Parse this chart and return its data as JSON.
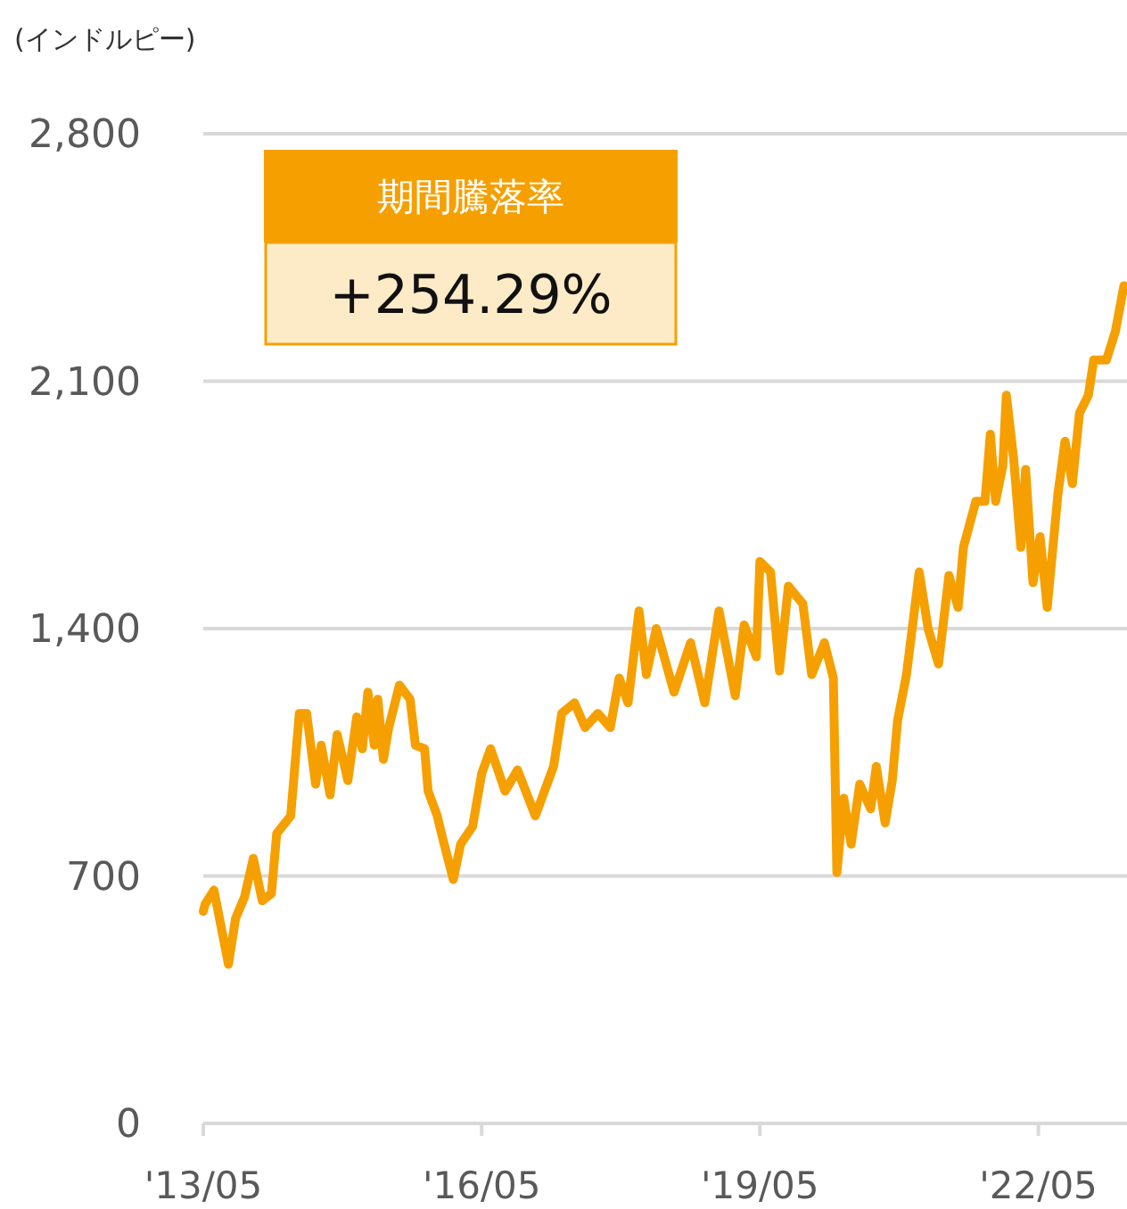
{
  "chart_data": {
    "type": "line",
    "ylabel": "(インドルピー)",
    "annotations": [
      "期間騰落率",
      "+254.29%"
    ],
    "grid": "y",
    "xlim": [
      "2013-05-01",
      "2023-04-15"
    ],
    "xticks": [
      {
        "value": "2013-05",
        "label": "'13/05"
      },
      {
        "value": "2016-05",
        "label": "'16/05"
      },
      {
        "value": "2019-05",
        "label": "'19/05"
      },
      {
        "value": "2022-05",
        "label": "'22/05"
      }
    ],
    "ylim": [
      0,
      2800
    ],
    "yticks": [
      0,
      700,
      {
        "value": 1400,
        "label": "1,400"
      },
      {
        "value": 2100,
        "label": "2,100"
      },
      {
        "value": 2800,
        "label": "2,800"
      }
    ],
    "x": [
      "2013-05-01",
      "2013-05-08",
      "2013-06-12",
      "2013-08-08",
      "2013-09-05",
      "2013-10-10",
      "2013-11-14",
      "2013-12-19",
      "2014-01-24",
      "2014-02-14",
      "2014-04-10",
      "2014-05-14",
      "2014-06-12",
      "2014-07-17",
      "2014-08-08",
      "2014-09-12",
      "2014-10-10",
      "2014-11-21",
      "2014-12-26",
      "2015-01-17",
      "2015-02-08",
      "2015-03-05",
      "2015-03-19",
      "2015-04-10",
      "2015-05-01",
      "2015-06-12",
      "2015-07-24",
      "2015-08-14",
      "2015-09-19",
      "2015-10-03",
      "2015-11-08",
      "2015-11-28",
      "2016-01-10",
      "2016-02-08",
      "2016-03-26",
      "2016-05-01",
      "2016-06-05",
      "2016-08-01",
      "2016-09-19",
      "2016-11-28",
      "2017-02-08",
      "2017-03-12",
      "2017-05-01",
      "2017-06-12",
      "2017-08-01",
      "2017-09-19",
      "2017-10-24",
      "2017-11-28",
      "2018-01-10",
      "2018-02-08",
      "2018-03-19",
      "2018-05-28",
      "2018-08-01",
      "2018-09-26",
      "2018-11-21",
      "2019-01-24",
      "2019-02-28",
      "2019-04-17",
      "2019-05-01",
      "2019-06-12",
      "2019-07-17",
      "2019-08-21",
      "2019-10-17",
      "2019-11-21",
      "2020-01-10",
      "2020-02-14",
      "2020-02-21",
      "2020-02-28",
      "2020-03-26",
      "2020-04-24",
      "2020-05-28",
      "2020-07-10",
      "2020-08-01",
      "2020-09-05",
      "2020-10-03",
      "2020-10-24",
      "2020-11-28",
      "2021-01-17",
      "2021-02-21",
      "2021-04-03",
      "2021-05-14",
      "2021-06-19",
      "2021-07-10",
      "2021-08-28",
      "2021-10-03",
      "2021-10-24",
      "2021-11-14",
      "2021-12-12",
      "2021-12-26",
      "2022-01-24",
      "2022-02-21",
      "2022-03-12",
      "2022-04-10",
      "2022-05-08",
      "2022-06-05",
      "2022-07-17",
      "2022-08-14",
      "2022-09-12",
      "2022-10-10",
      "2022-11-14",
      "2022-12-05",
      "2023-01-24",
      "2023-02-28",
      "2023-04-03"
    ],
    "series": [
      {
        "color": "#f5a000",
        "values": [
          600,
          620,
          660,
          450,
          580,
          640,
          750,
          630,
          650,
          820,
          870,
          1160,
          1160,
          960,
          1070,
          930,
          1100,
          970,
          1150,
          1060,
          1220,
          1070,
          1200,
          1030,
          1120,
          1240,
          1200,
          1070,
          1060,
          940,
          870,
          810,
          690,
          790,
          840,
          990,
          1060,
          940,
          1000,
          870,
          1010,
          1160,
          1190,
          1120,
          1160,
          1120,
          1260,
          1190,
          1450,
          1270,
          1400,
          1220,
          1360,
          1190,
          1450,
          1210,
          1410,
          1320,
          1590,
          1560,
          1280,
          1520,
          1470,
          1270,
          1360,
          1260,
          990,
          710,
          920,
          790,
          960,
          890,
          1010,
          850,
          970,
          1140,
          1270,
          1560,
          1400,
          1300,
          1550,
          1460,
          1630,
          1760,
          1760,
          1950,
          1760,
          1860,
          2060,
          1880,
          1630,
          1850,
          1530,
          1660,
          1460,
          1780,
          1930,
          1810,
          2010,
          2060,
          2160,
          2160,
          2240,
          2370
        ]
      }
    ]
  }
}
